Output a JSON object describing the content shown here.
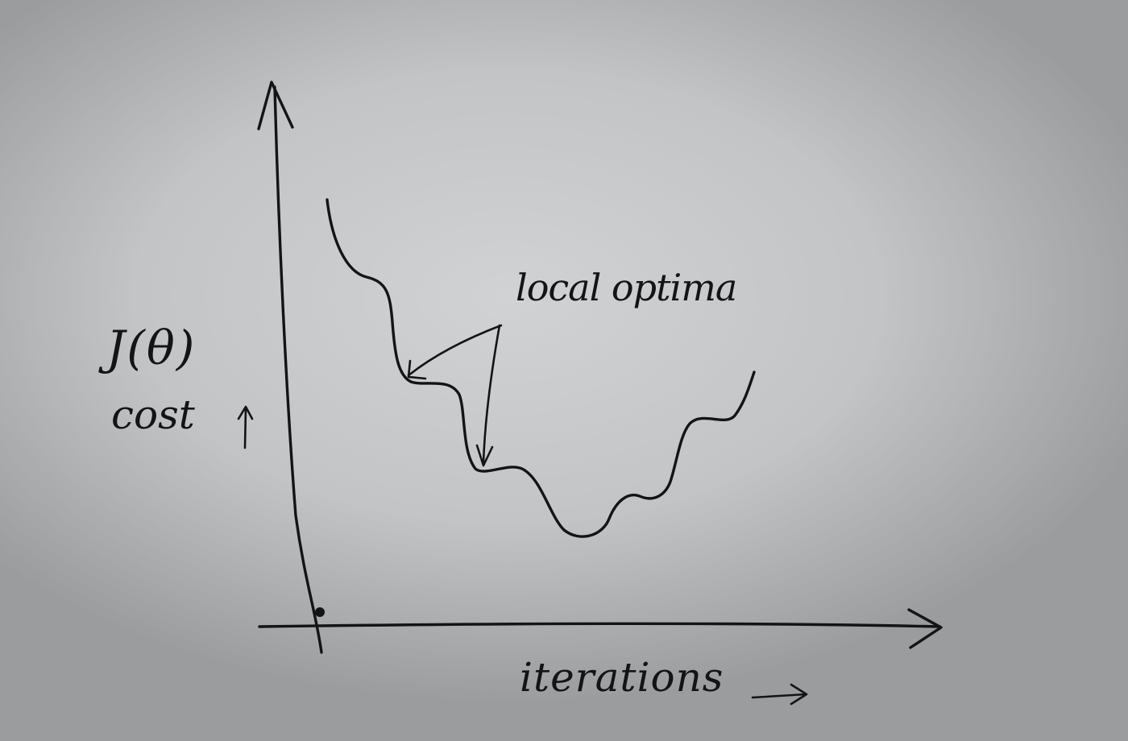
{
  "diagram": {
    "y_axis_label": "J(θ)",
    "y_axis_sublabel": "cost",
    "x_axis_label": "iterations",
    "annotation": "local optima",
    "colors": {
      "ink": "#141414",
      "paper": "#c8cacc"
    }
  }
}
